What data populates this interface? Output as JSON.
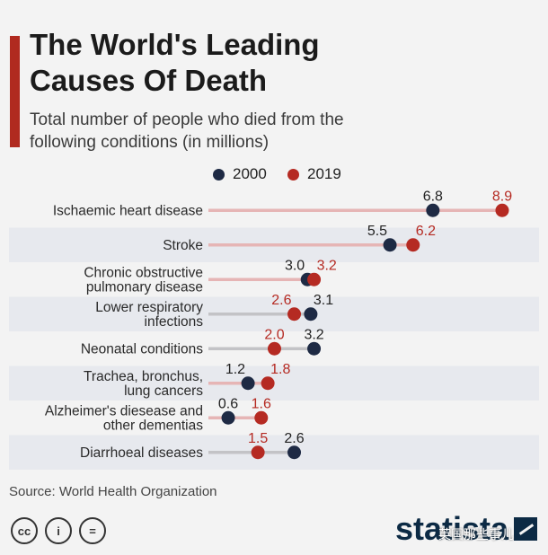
{
  "header": {
    "title": "The World's Leading Causes Of Death",
    "subtitle": "Total number of people who died from the following conditions (in millions)"
  },
  "legend": [
    {
      "label": "2000",
      "color": "#1e2a44"
    },
    {
      "label": "2019",
      "color": "#b52a22"
    }
  ],
  "colors": {
    "series_2000": "#1e2a44",
    "series_2019": "#b52a22",
    "label_2019": "#b52a22",
    "label_2000": "#222222",
    "connector_increase": "#e6b5b5",
    "connector_decrease": "#c3c3c6",
    "band": "#e7e9ee",
    "accent": "#b02a1f"
  },
  "chart_data": {
    "type": "dumbbell",
    "title": "The World's Leading Causes Of Death",
    "subtitle": "Total number of people who died from the following conditions (in millions)",
    "unit": "millions",
    "xlim": [
      0,
      9.2
    ],
    "series_names": [
      "2000",
      "2019"
    ],
    "categories": [
      {
        "lines": [
          "Ischaemic heart disease"
        ],
        "v2000": 6.8,
        "v2019": 8.9
      },
      {
        "lines": [
          "Stroke"
        ],
        "v2000": 5.5,
        "v2019": 6.2
      },
      {
        "lines": [
          "Chronic obstructive",
          "pulmonary disease"
        ],
        "v2000": 3.0,
        "v2019": 3.2
      },
      {
        "lines": [
          "Lower respiratory",
          "infections"
        ],
        "v2000": 3.1,
        "v2019": 2.6
      },
      {
        "lines": [
          "Neonatal conditions"
        ],
        "v2000": 3.2,
        "v2019": 2.0
      },
      {
        "lines": [
          "Trachea, bronchus,",
          "lung cancers"
        ],
        "v2000": 1.2,
        "v2019": 1.8
      },
      {
        "lines": [
          "Alzheimer's diesease and",
          "other dementias"
        ],
        "v2000": 0.6,
        "v2019": 1.6
      },
      {
        "lines": [
          "Diarrhoeal diseases"
        ],
        "v2000": 2.6,
        "v2019": 1.5
      }
    ]
  },
  "footer": {
    "source": "Source: World Health Organization",
    "license_icons": [
      {
        "name": "cc-icon",
        "glyph": "cc"
      },
      {
        "name": "attribution-icon",
        "glyph": "i"
      },
      {
        "name": "no-derivatives-icon",
        "glyph": "="
      }
    ],
    "brand": "statista",
    "watermark": "英国那些事儿"
  }
}
